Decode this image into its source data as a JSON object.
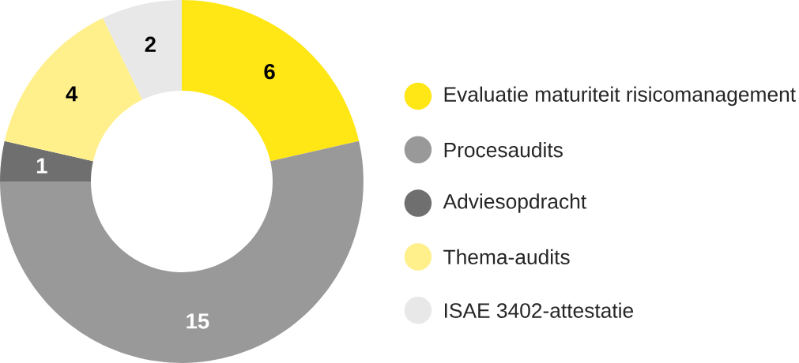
{
  "chart_data": {
    "type": "donut",
    "categories": [
      "Evaluatie maturiteit risicomanagement",
      "Procesaudits",
      "Adviesopdracht",
      "Thema-audits",
      "ISAE 3402-attestatie"
    ],
    "values": [
      6,
      15,
      1,
      4,
      2
    ],
    "colors": [
      "#ffe615",
      "#999999",
      "#6f6f6f",
      "#fff08c",
      "#e8e8e8"
    ],
    "data_labels": true,
    "legend": "right"
  }
}
